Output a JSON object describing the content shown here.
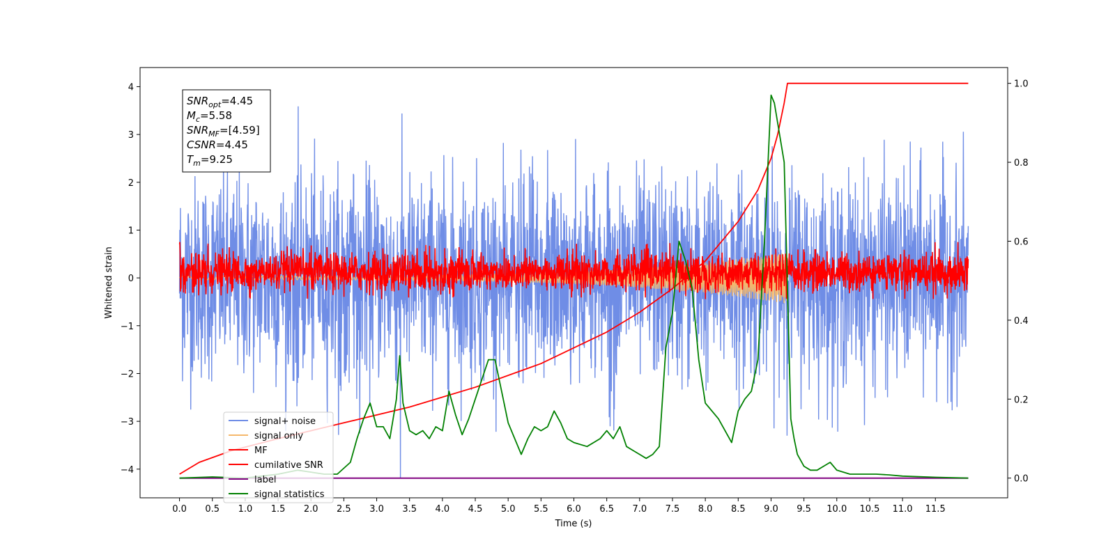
{
  "chart_data": {
    "type": "line",
    "title": "",
    "xlabel": "Time (s)",
    "ylabel": "Whitened strain",
    "y2label": "",
    "xlim": [
      -0.6,
      12.6
    ],
    "ylim": [
      -4.6,
      4.4
    ],
    "y2lim": [
      -0.05,
      1.04
    ],
    "x_ticks": [
      0.0,
      0.5,
      1.0,
      1.5,
      2.0,
      2.5,
      3.0,
      3.5,
      4.0,
      4.5,
      5.0,
      5.5,
      6.0,
      6.5,
      7.0,
      7.5,
      8.0,
      8.5,
      9.0,
      9.5,
      10.0,
      10.5,
      11.0,
      11.5
    ],
    "x_tick_labels": [
      "0.0",
      "0.5",
      "1.0",
      "1.5",
      "2.0",
      "2.5",
      "3.0",
      "3.5",
      "4.0",
      "4.5",
      "5.0",
      "5.5",
      "6.0",
      "6.5",
      "7.0",
      "7.5",
      "8.0",
      "8.5",
      "9.0",
      "9.5",
      "10.0",
      "10.5",
      "11.0",
      "11.5"
    ],
    "y_ticks": [
      -4,
      -3,
      -2,
      -1,
      0,
      1,
      2,
      3,
      4
    ],
    "y_tick_labels": [
      "−4",
      "−3",
      "−2",
      "−1",
      "0",
      "1",
      "2",
      "3",
      "4"
    ],
    "y2_ticks": [
      0.0,
      0.2,
      0.4,
      0.6,
      0.8,
      1.0
    ],
    "y2_tick_labels": [
      "0.0",
      "0.2",
      "0.4",
      "0.6",
      "0.8",
      "1.0"
    ],
    "grid": false,
    "legend_placement": "lower-left",
    "series": [
      {
        "name": "signal+ noise",
        "axis": "left",
        "color": "#6f8de6",
        "style": "noise",
        "x_range": [
          0,
          12
        ],
        "amplitude_range": [
          -3.3,
          3.6
        ],
        "notable_spikes": [
          {
            "x": 3.36,
            "y": -4.2
          }
        ]
      },
      {
        "name": "signal only",
        "axis": "left",
        "color": "#f5b86b",
        "style": "chirp",
        "x_range": [
          0,
          9.25
        ],
        "amplitude_range": [
          -0.5,
          0.6
        ]
      },
      {
        "name": "MF",
        "axis": "left",
        "color": "#ff0000",
        "style": "noise",
        "x_range": [
          0,
          12
        ],
        "amplitude_range": [
          -0.45,
          0.75
        ],
        "start_value": 1.0
      },
      {
        "name": "cumilative SNR",
        "axis": "right",
        "color": "#ff0000",
        "style": "curve",
        "x": [
          0.0,
          0.3,
          0.8,
          1.5,
          2.5,
          3.5,
          4.5,
          5.5,
          6.5,
          7.0,
          7.5,
          8.0,
          8.5,
          8.8,
          9.0,
          9.1,
          9.2,
          9.25,
          12.0
        ],
        "y": [
          0.01,
          0.04,
          0.07,
          0.1,
          0.14,
          0.18,
          0.23,
          0.29,
          0.37,
          0.42,
          0.48,
          0.55,
          0.65,
          0.73,
          0.81,
          0.87,
          0.95,
          1.0,
          1.0
        ]
      },
      {
        "name": "label",
        "axis": "right",
        "color": "#800080",
        "style": "line",
        "x": [
          0.0,
          12.0
        ],
        "y": [
          0.0,
          0.0
        ]
      },
      {
        "name": "signal statistics",
        "axis": "right",
        "color": "#008000",
        "style": "line",
        "x": [
          0.0,
          0.5,
          1.0,
          1.5,
          1.8,
          2.0,
          2.2,
          2.4,
          2.6,
          2.7,
          2.8,
          2.9,
          3.0,
          3.1,
          3.2,
          3.3,
          3.35,
          3.4,
          3.5,
          3.6,
          3.7,
          3.8,
          3.9,
          4.0,
          4.1,
          4.2,
          4.3,
          4.4,
          4.5,
          4.6,
          4.7,
          4.8,
          4.9,
          5.0,
          5.1,
          5.2,
          5.3,
          5.4,
          5.5,
          5.6,
          5.7,
          5.8,
          5.9,
          6.0,
          6.2,
          6.4,
          6.5,
          6.6,
          6.7,
          6.8,
          6.9,
          7.0,
          7.1,
          7.2,
          7.3,
          7.4,
          7.5,
          7.6,
          7.7,
          7.8,
          7.9,
          8.0,
          8.2,
          8.4,
          8.5,
          8.6,
          8.7,
          8.8,
          8.9,
          9.0,
          9.05,
          9.1,
          9.2,
          9.3,
          9.35,
          9.4,
          9.5,
          9.6,
          9.7,
          9.8,
          9.9,
          10.0,
          10.1,
          10.2,
          10.4,
          10.6,
          10.8,
          11.0,
          11.5,
          12.0
        ],
        "y": [
          0.0,
          0.003,
          0.0,
          0.01,
          0.02,
          0.015,
          0.01,
          0.01,
          0.04,
          0.1,
          0.15,
          0.19,
          0.13,
          0.13,
          0.1,
          0.2,
          0.31,
          0.19,
          0.12,
          0.11,
          0.12,
          0.1,
          0.13,
          0.12,
          0.22,
          0.16,
          0.11,
          0.15,
          0.2,
          0.25,
          0.3,
          0.3,
          0.22,
          0.14,
          0.1,
          0.06,
          0.1,
          0.13,
          0.12,
          0.13,
          0.17,
          0.14,
          0.1,
          0.09,
          0.08,
          0.1,
          0.12,
          0.1,
          0.13,
          0.08,
          0.07,
          0.06,
          0.05,
          0.06,
          0.08,
          0.33,
          0.42,
          0.6,
          0.55,
          0.48,
          0.3,
          0.19,
          0.15,
          0.09,
          0.17,
          0.2,
          0.22,
          0.3,
          0.6,
          0.97,
          0.95,
          0.9,
          0.8,
          0.15,
          0.1,
          0.06,
          0.03,
          0.02,
          0.02,
          0.03,
          0.04,
          0.02,
          0.015,
          0.01,
          0.01,
          0.01,
          0.008,
          0.005,
          0.002,
          0.0
        ]
      }
    ],
    "annotation_lines": [
      {
        "label": "SNR",
        "sub": "opt",
        "value": "=4.45"
      },
      {
        "label": "M",
        "sub": "c",
        "value": "=5.58"
      },
      {
        "label": "SNR",
        "sub": "MF",
        "value": "=[4.59]"
      },
      {
        "label": "CSNR",
        "sub": "",
        "value": "=4.45"
      },
      {
        "label": "T",
        "sub": "m",
        "value": "=9.25"
      }
    ]
  }
}
